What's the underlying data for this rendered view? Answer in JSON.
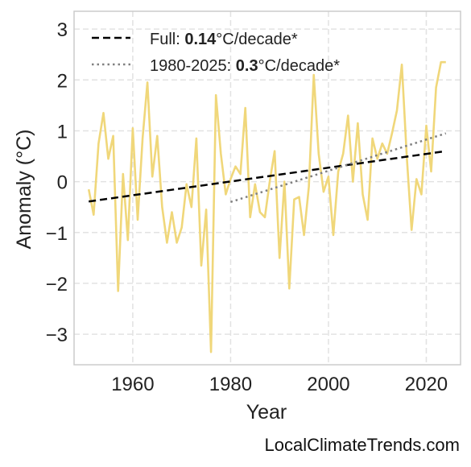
{
  "chart_data": {
    "type": "line",
    "xlabel": "Year",
    "ylabel": "Anomaly (°C)",
    "xlim": [
      1948,
      2027
    ],
    "ylim": [
      -3.6,
      3.35
    ],
    "xticks": [
      1960,
      1980,
      2000,
      2020
    ],
    "yticks": [
      -3,
      -2,
      -1,
      0,
      1,
      2,
      3
    ],
    "ytick_labels": [
      "−3",
      "−2",
      "−1",
      "0",
      "1",
      "2",
      "3"
    ],
    "grid": true,
    "legend_position": "top-left",
    "series": [
      {
        "color": "#f0d77a",
        "x": [
          1951,
          1952,
          1953,
          1954,
          1955,
          1956,
          1957,
          1958,
          1959,
          1960,
          1961,
          1962,
          1963,
          1964,
          1965,
          1966,
          1967,
          1968,
          1969,
          1970,
          1971,
          1972,
          1973,
          1974,
          1975,
          1976,
          1977,
          1978,
          1979,
          1980,
          1981,
          1982,
          1983,
          1984,
          1985,
          1986,
          1987,
          1988,
          1989,
          1990,
          1991,
          1992,
          1993,
          1994,
          1995,
          1996,
          1997,
          1998,
          1999,
          2000,
          2001,
          2002,
          2003,
          2004,
          2005,
          2006,
          2007,
          2008,
          2009,
          2010,
          2011,
          2012,
          2013,
          2014,
          2015,
          2016,
          2017,
          2018,
          2019,
          2020,
          2021,
          2022,
          2023,
          2024
        ],
        "y": [
          -0.15,
          -0.65,
          0.75,
          1.35,
          0.45,
          0.9,
          -2.15,
          0.15,
          -1.15,
          1.05,
          -0.75,
          0.85,
          1.95,
          0.1,
          0.9,
          -0.5,
          -1.2,
          -0.6,
          -1.2,
          -0.9,
          -0.05,
          -0.5,
          0.85,
          -1.65,
          -0.55,
          -3.35,
          1.7,
          0.55,
          -0.25,
          0.05,
          0.3,
          0.15,
          1.45,
          -0.7,
          -0.05,
          -0.6,
          -0.7,
          0.0,
          0.6,
          -1.5,
          0.0,
          -2.1,
          -0.35,
          -0.3,
          -1.05,
          -0.1,
          2.1,
          0.55,
          -0.2,
          0.1,
          -1.05,
          0.2,
          0.55,
          1.3,
          0.0,
          1.15,
          -0.25,
          -0.75,
          0.85,
          0.45,
          0.75,
          0.55,
          0.95,
          1.4,
          2.3,
          0.5,
          -0.95,
          0.05,
          -0.25,
          1.1,
          0.2,
          1.85,
          2.35,
          2.35
        ]
      }
    ],
    "trends": [
      {
        "label_prefix": "Full: ",
        "label_value": "0.14",
        "label_suffix": "°C/decade*",
        "style": "dashed",
        "color": "#000000",
        "x": [
          1951,
          2024
        ],
        "y": [
          -0.39,
          0.6
        ]
      },
      {
        "label_prefix": "1980-2025: ",
        "label_value": "0.3",
        "label_suffix": "°C/decade*",
        "style": "dotted",
        "color": "#808080",
        "x": [
          1980,
          2024
        ],
        "y": [
          -0.4,
          0.95
        ]
      }
    ]
  },
  "footer": {
    "site": "LocalClimateTrends.com"
  }
}
